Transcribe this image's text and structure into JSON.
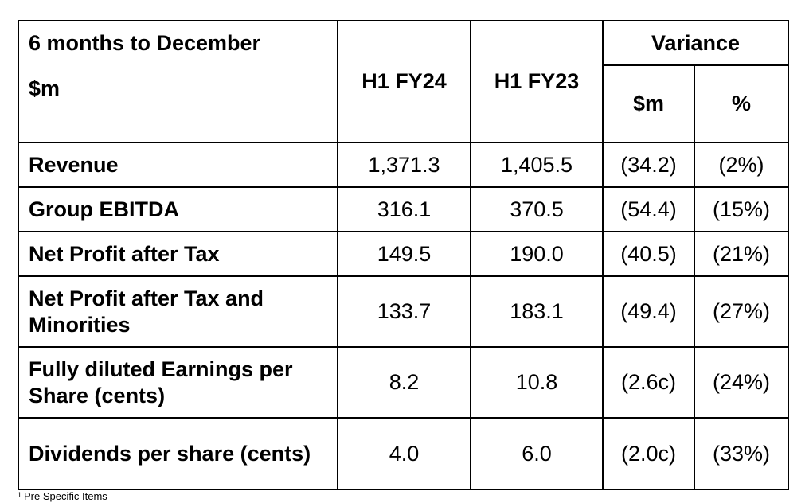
{
  "table": {
    "header": {
      "period_label": "6 months to December",
      "unit_label": "$m",
      "col_current": "H1 FY24",
      "col_prior": "H1 FY23",
      "variance_label": "Variance",
      "variance_abs_label": "$m",
      "variance_pct_label": "%"
    },
    "rows": [
      {
        "label": "Revenue",
        "current": "1,371.3",
        "prior": "1,405.5",
        "var_abs": "(34.2)",
        "var_pct": "(2%)"
      },
      {
        "label": "Group EBITDA",
        "current": "316.1",
        "prior": "370.5",
        "var_abs": "(54.4)",
        "var_pct": "(15%)"
      },
      {
        "label": "Net Profit after Tax",
        "current": "149.5",
        "prior": "190.0",
        "var_abs": "(40.5)",
        "var_pct": "(21%)"
      },
      {
        "label": "Net Profit after Tax and Minorities",
        "current": "133.7",
        "prior": "183.1",
        "var_abs": "(49.4)",
        "var_pct": "(27%)"
      },
      {
        "label": "Fully diluted Earnings per Share (cents)",
        "current": "8.2",
        "prior": "10.8",
        "var_abs": "(2.6c)",
        "var_pct": "(24%)"
      },
      {
        "label": "Dividends per share (cents)",
        "current": "4.0",
        "prior": "6.0",
        "var_abs": "(2.0c)",
        "var_pct": "(33%)"
      }
    ]
  },
  "footnote": {
    "marker": "1",
    "text": "Pre Specific Items"
  }
}
